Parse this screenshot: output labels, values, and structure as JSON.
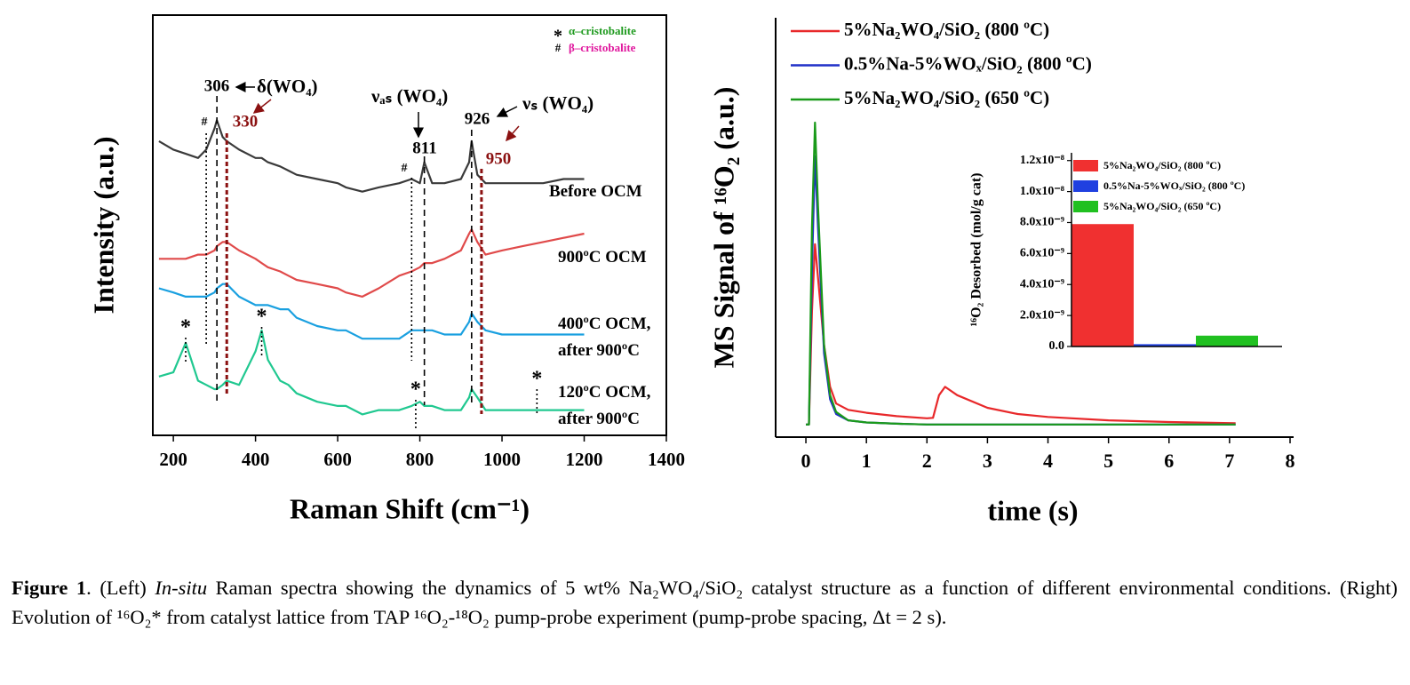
{
  "chart_data": [
    {
      "type": "line",
      "x_label": "Raman Shift (cm⁻¹)",
      "y_label": "Intensity (a.u.)",
      "xlim": [
        150,
        1400
      ],
      "xticks": [
        200,
        400,
        600,
        800,
        1000,
        1200,
        1400
      ],
      "ylim": [
        0,
        100
      ],
      "x": [
        165,
        200,
        230,
        260,
        280,
        300,
        306,
        320,
        330,
        360,
        400,
        415,
        430,
        460,
        480,
        500,
        550,
        600,
        620,
        660,
        700,
        750,
        780,
        800,
        811,
        830,
        860,
        900,
        920,
        926,
        940,
        960,
        1000,
        1050,
        1100,
        1150,
        1200
      ],
      "series": [
        {
          "name": "Before OCM",
          "color": "#3a3a3a",
          "values": [
            70,
            68,
            67,
            66,
            68,
            73,
            75,
            71,
            70,
            68,
            66,
            66,
            65,
            64,
            63,
            62,
            61,
            60,
            59,
            58,
            59,
            60,
            61,
            60,
            65,
            60,
            60,
            61,
            65,
            70,
            62,
            60,
            60,
            60,
            60,
            61,
            61
          ]
        },
        {
          "name": "900ºC OCM",
          "color": "#e04a4a",
          "values": [
            42,
            42,
            42,
            43,
            43,
            44,
            45,
            46,
            46,
            44,
            42,
            41,
            40,
            39,
            38,
            37,
            36,
            35,
            34,
            33,
            35,
            38,
            39,
            40,
            41,
            41,
            42,
            44,
            48,
            49,
            46,
            43,
            44,
            45,
            46,
            47,
            48
          ]
        },
        {
          "name": "400ºC OCM, after 900ºC",
          "color": "#1aa0e0",
          "values": [
            35,
            34,
            33,
            33,
            33,
            34,
            35,
            36,
            36,
            33,
            31,
            31,
            31,
            30,
            30,
            28,
            26,
            25,
            25,
            23,
            23,
            23,
            25,
            25,
            25,
            25,
            24,
            24,
            27,
            29,
            27,
            25,
            24,
            24,
            24,
            24,
            24
          ]
        },
        {
          "name": "120ºC OCM, after 900ºC",
          "color": "#20c890",
          "values": [
            14,
            15,
            22,
            13,
            12,
            11,
            11,
            12,
            13,
            12,
            20,
            25,
            18,
            13,
            12,
            10,
            8,
            7,
            7,
            5,
            6,
            6,
            7,
            8,
            7,
            7,
            6,
            6,
            9,
            11,
            9,
            6,
            6,
            6,
            6,
            6,
            6
          ]
        }
      ],
      "peaks": [
        {
          "x": 306,
          "color": "#000000"
        },
        {
          "x": 330,
          "color": "#8b1111"
        },
        {
          "x": 811,
          "color": "#000000"
        },
        {
          "x": 926,
          "color": "#000000"
        },
        {
          "x": 950,
          "color": "#8b1111"
        }
      ],
      "annotations": [
        "δ(WO₄)",
        "νₐₛ (WO₄)",
        "νₛ (WO₄)"
      ],
      "markers": [
        {
          "symbol": "*",
          "name": "α–cristobalite",
          "color": "#1f9a1f",
          "x": [
            230,
            415,
            790,
            1085
          ]
        },
        {
          "symbol": "#",
          "name": "β–cristobalite",
          "color": "#e0189e",
          "x": [
            280,
            780
          ]
        }
      ]
    },
    {
      "type": "line",
      "x_label": "time (s)",
      "y_label": "MS Signal of ¹⁶O₂ (a.u.)",
      "xlim": [
        -0.5,
        8
      ],
      "xticks": [
        0,
        1,
        2,
        3,
        4,
        5,
        6,
        7,
        8
      ],
      "ylim": [
        0,
        100
      ],
      "x": [
        0,
        0.05,
        0.1,
        0.15,
        0.2,
        0.3,
        0.4,
        0.5,
        0.7,
        1,
        1.5,
        2,
        2.1,
        2.2,
        2.3,
        2.5,
        3,
        3.5,
        4,
        5,
        6,
        7.1
      ],
      "series": [
        {
          "name": "5%Na₂WO₄/SiO₂ (800 ºC)",
          "color": "#e8282a",
          "values": [
            3,
            3,
            30,
            46,
            38,
            22,
            12,
            8,
            6.5,
            5.8,
            5,
            4.5,
            4.6,
            10,
            12,
            10,
            7,
            5.5,
            4.8,
            4,
            3.6,
            3.3
          ]
        },
        {
          "name": "0.5%Na-5%WOₓ/SiO₂ (800 ºC)",
          "color": "#2030c8",
          "values": [
            3,
            3,
            40,
            67,
            50,
            20,
            9,
            5.5,
            4,
            3.5,
            3.2,
            3,
            3,
            3,
            3,
            3,
            3,
            3,
            3,
            3,
            3,
            3
          ]
        },
        {
          "name": "5%Na₂WO₄/SiO₂ (650 ºC)",
          "color": "#1a9a1a",
          "values": [
            3,
            3,
            50,
            75,
            55,
            22,
            10,
            6,
            4,
            3.5,
            3.2,
            3,
            3,
            3,
            3,
            3,
            3,
            3,
            3,
            3,
            3,
            3
          ]
        }
      ]
    },
    {
      "type": "bar",
      "y_label": "¹⁶O₂ Desorbed (mol/g cat)",
      "ylim": [
        0,
        1.25e-08
      ],
      "yticks": [
        {
          "value": 0,
          "label": "0.0"
        },
        {
          "value": 2e-09,
          "label": "2.0x10⁻⁹"
        },
        {
          "value": 4e-09,
          "label": "4.0x10⁻⁹"
        },
        {
          "value": 6e-09,
          "label": "6.0x10⁻⁹"
        },
        {
          "value": 8e-09,
          "label": "8.0x10⁻⁹"
        },
        {
          "value": 1e-08,
          "label": "1.0x10⁻⁸"
        },
        {
          "value": 1.2e-08,
          "label": "1.2x10⁻⁸"
        }
      ],
      "series": [
        {
          "name": "5%Na₂WO₄/SiO₂ (800 ºC)",
          "color": "#f03030",
          "values": [
            7.9e-09
          ]
        },
        {
          "name": "0.5%Na-5%WOₓ/SiO₂ (800 ºC)",
          "color": "#2040e0",
          "values": [
            1.5e-10
          ]
        },
        {
          "name": "5%Na₂WO₄/SiO₂ (650 ºC)",
          "color": "#20c020",
          "values": [
            7e-10
          ]
        }
      ]
    }
  ],
  "caption": {
    "label": "Figure 1",
    "lead": ". (Left) ",
    "italic": "In-situ",
    "text": " Raman spectra showing the dynamics of 5 wt% Na₂WO₄/SiO₂ catalyst structure as a function of different environmental conditions. (Right) Evolution of ¹⁶O₂* from catalyst lattice from TAP ¹⁶O₂-¹⁸O₂ pump-probe experiment (pump-probe spacing, Δt = 2 s)."
  }
}
